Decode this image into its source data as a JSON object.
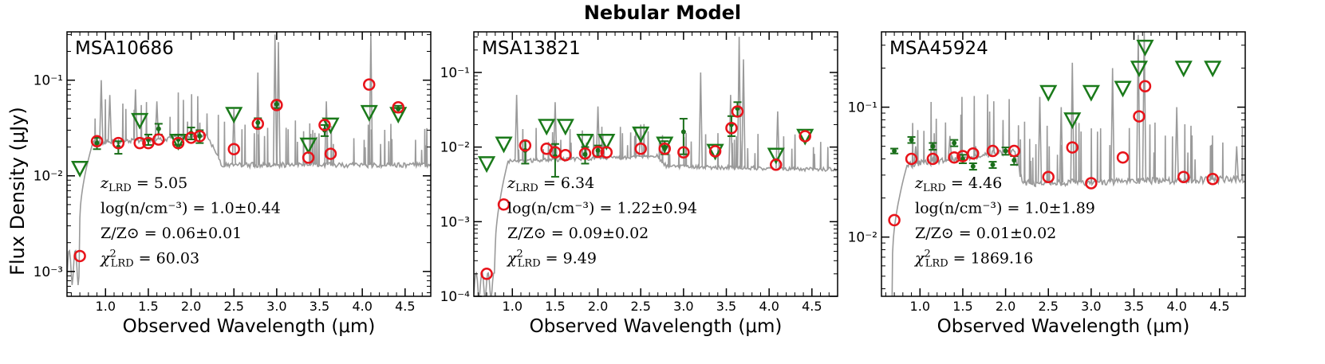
{
  "figure": {
    "title": "Nebular Model",
    "ylabel": "Flux Density (μJy)",
    "xlabel": "Observed Wavelength (μm)"
  },
  "colors": {
    "model": "#9a9a9a",
    "model_phot": "#e8131a",
    "detection": "#1a6f1a",
    "upper_limit": "#1a7a1a"
  },
  "chart_data": [
    {
      "type": "scatter",
      "name": "MSA10686",
      "xlim": [
        0.55,
        4.8
      ],
      "ylim": [
        0.00055,
        0.32
      ],
      "yscale": "log",
      "xticks": [
        "1.0",
        "1.5",
        "2.0",
        "2.5",
        "3.0",
        "3.5",
        "4.0",
        "4.5"
      ],
      "yticks": [
        {
          "value": 0.001,
          "label": "10⁻³"
        },
        {
          "value": 0.01,
          "label": "10⁻²"
        },
        {
          "value": 0.1,
          "label": "10⁻¹"
        }
      ],
      "annotations": [
        "z_LRD = 5.05",
        "log(n/cm⁻³) = 1.0±0.44",
        "Z/Z⊙ = 0.06±0.01",
        "χ²_LRD = 60.03"
      ],
      "model_sed": {
        "break": 0.7,
        "pre": 0.0012,
        "plateau": [
          [
            0.85,
            0.022
          ],
          [
            2.2,
            0.026
          ],
          [
            2.35,
            0.013
          ],
          [
            4.8,
            0.013
          ]
        ],
        "lines": [
          [
            0.95,
            0.1
          ],
          [
            1.05,
            0.07
          ],
          [
            1.35,
            0.08
          ],
          [
            1.6,
            0.06
          ],
          [
            2.5,
            0.05
          ],
          [
            2.78,
            0.12
          ],
          [
            2.98,
            0.3
          ],
          [
            3.02,
            0.25
          ],
          [
            3.58,
            0.06
          ],
          [
            4.1,
            0.3
          ]
        ]
      },
      "model_phot": [
        [
          0.7,
          0.00145
        ],
        [
          0.9,
          0.023
        ],
        [
          1.15,
          0.022
        ],
        [
          1.4,
          0.022
        ],
        [
          1.5,
          0.022
        ],
        [
          1.62,
          0.024
        ],
        [
          1.85,
          0.022
        ],
        [
          2.0,
          0.025
        ],
        [
          2.1,
          0.026
        ],
        [
          2.5,
          0.019
        ],
        [
          2.78,
          0.035
        ],
        [
          3.0,
          0.055
        ],
        [
          3.37,
          0.0155
        ],
        [
          3.56,
          0.034
        ],
        [
          3.63,
          0.017
        ],
        [
          4.08,
          0.09
        ],
        [
          4.42,
          0.052
        ]
      ],
      "detections": [
        [
          0.9,
          0.022,
          0.003
        ],
        [
          1.15,
          0.02,
          0.003
        ],
        [
          1.5,
          0.024,
          0.003
        ],
        [
          1.62,
          0.031,
          0.004
        ],
        [
          1.85,
          0.024,
          0.003
        ],
        [
          2.0,
          0.028,
          0.004
        ],
        [
          2.1,
          0.026,
          0.004
        ],
        [
          2.78,
          0.036,
          0.004
        ],
        [
          3.0,
          0.056,
          0.005
        ],
        [
          3.56,
          0.03,
          0.004
        ],
        [
          4.42,
          0.05,
          0.004
        ]
      ],
      "upper_limits": [
        [
          0.7,
          0.012
        ],
        [
          1.4,
          0.038
        ],
        [
          1.85,
          0.023
        ],
        [
          2.5,
          0.044
        ],
        [
          3.37,
          0.021
        ],
        [
          3.63,
          0.034
        ],
        [
          4.08,
          0.046
        ],
        [
          4.42,
          0.044
        ]
      ]
    },
    {
      "type": "scatter",
      "name": "MSA13821",
      "xlim": [
        0.55,
        4.8
      ],
      "ylim": [
        0.0001,
        0.35
      ],
      "yscale": "log",
      "xticks": [
        "1.0",
        "1.5",
        "2.0",
        "2.5",
        "3.0",
        "3.5",
        "4.0",
        "4.5"
      ],
      "yticks": [
        {
          "value": 0.0001,
          "label": "10⁻⁴"
        },
        {
          "value": 0.001,
          "label": "10⁻³"
        },
        {
          "value": 0.01,
          "label": "10⁻²"
        },
        {
          "value": 0.1,
          "label": "10⁻¹"
        }
      ],
      "annotations": [
        "z_LRD = 6.34",
        "log(n/cm⁻³) = 1.22±0.94",
        "Z/Z⊙ = 0.09±0.02",
        "χ²_LRD = 9.49"
      ],
      "model_sed": {
        "break": 0.8,
        "pre": 0.00015,
        "plateau": [
          [
            0.95,
            0.0065
          ],
          [
            2.7,
            0.0075
          ],
          [
            2.8,
            0.0055
          ],
          [
            4.8,
            0.005
          ]
        ],
        "lines": [
          [
            1.05,
            0.05
          ],
          [
            1.5,
            0.04
          ],
          [
            2.0,
            0.035
          ],
          [
            2.5,
            0.02
          ],
          [
            3.2,
            0.1
          ],
          [
            3.55,
            0.05
          ],
          [
            3.65,
            0.3
          ],
          [
            3.7,
            0.15
          ],
          [
            4.1,
            0.03
          ]
        ]
      },
      "model_phot": [
        [
          0.7,
          0.0002
        ],
        [
          0.9,
          0.0017
        ],
        [
          1.15,
          0.0105
        ],
        [
          1.4,
          0.0095
        ],
        [
          1.5,
          0.0085
        ],
        [
          1.62,
          0.0078
        ],
        [
          1.85,
          0.0082
        ],
        [
          2.0,
          0.0086
        ],
        [
          2.1,
          0.0085
        ],
        [
          2.5,
          0.0095
        ],
        [
          2.78,
          0.0095
        ],
        [
          3.0,
          0.0085
        ],
        [
          3.37,
          0.0088
        ],
        [
          3.56,
          0.018
        ],
        [
          3.63,
          0.03
        ],
        [
          4.08,
          0.0058
        ],
        [
          4.42,
          0.014
        ]
      ],
      "detections": [
        [
          1.15,
          0.009,
          0.003
        ],
        [
          1.5,
          0.0075,
          0.0035
        ],
        [
          1.85,
          0.008,
          0.002
        ],
        [
          2.0,
          0.009,
          0.0015
        ],
        [
          2.78,
          0.01,
          0.002
        ],
        [
          3.0,
          0.016,
          0.008
        ],
        [
          3.56,
          0.02,
          0.006
        ],
        [
          3.63,
          0.033,
          0.007
        ]
      ],
      "upper_limits": [
        [
          0.7,
          0.006
        ],
        [
          0.9,
          0.011
        ],
        [
          1.4,
          0.019
        ],
        [
          1.62,
          0.019
        ],
        [
          1.85,
          0.012
        ],
        [
          2.1,
          0.012
        ],
        [
          2.5,
          0.015
        ],
        [
          2.78,
          0.011
        ],
        [
          3.37,
          0.0088
        ],
        [
          4.08,
          0.0078
        ],
        [
          4.42,
          0.014
        ]
      ]
    },
    {
      "type": "scatter",
      "name": "MSA45924",
      "xlim": [
        0.55,
        4.8
      ],
      "ylim": [
        0.0035,
        0.38
      ],
      "yscale": "log",
      "xticks": [
        "1.0",
        "1.5",
        "2.0",
        "2.5",
        "3.0",
        "3.5",
        "4.0",
        "4.5"
      ],
      "yticks": [
        {
          "value": 0.01,
          "label": "10⁻²"
        },
        {
          "value": 0.1,
          "label": "10⁻¹"
        }
      ],
      "annotations": [
        "z_LRD = 4.46",
        "log(n/cm⁻³) = 1.0±1.89",
        "Z/Z⊙ = 0.01±0.02",
        "χ²_LRD = 1869.16"
      ],
      "model_sed": {
        "break": 0.68,
        "pre": 0.0025,
        "plateau": [
          [
            0.85,
            0.036
          ],
          [
            2.1,
            0.046
          ],
          [
            2.2,
            0.026
          ],
          [
            4.8,
            0.028
          ]
        ],
        "lines": [
          [
            0.95,
            0.05
          ],
          [
            1.35,
            0.06
          ],
          [
            1.65,
            0.05
          ],
          [
            2.4,
            0.12
          ],
          [
            2.65,
            0.1
          ],
          [
            2.78,
            0.22
          ],
          [
            3.25,
            0.2
          ],
          [
            3.55,
            0.36
          ],
          [
            3.62,
            0.38
          ],
          [
            4.0,
            0.1
          ],
          [
            4.7,
            0.05
          ]
        ]
      },
      "model_phot": [
        [
          0.7,
          0.0135
        ],
        [
          0.9,
          0.04
        ],
        [
          1.15,
          0.04
        ],
        [
          1.4,
          0.041
        ],
        [
          1.5,
          0.042
        ],
        [
          1.62,
          0.044
        ],
        [
          1.85,
          0.046
        ],
        [
          2.1,
          0.046
        ],
        [
          2.5,
          0.029
        ],
        [
          2.78,
          0.049
        ],
        [
          3.0,
          0.026
        ],
        [
          3.37,
          0.041
        ],
        [
          3.56,
          0.085
        ],
        [
          3.63,
          0.145
        ],
        [
          4.08,
          0.029
        ],
        [
          4.42,
          0.028
        ]
      ],
      "detections": [
        [
          0.7,
          0.046,
          0.002
        ],
        [
          0.9,
          0.056,
          0.003
        ],
        [
          1.15,
          0.05,
          0.003
        ],
        [
          1.4,
          0.053,
          0.003
        ],
        [
          1.5,
          0.04,
          0.003
        ],
        [
          1.62,
          0.035,
          0.002
        ],
        [
          1.85,
          0.036,
          0.002
        ],
        [
          2.0,
          0.046,
          0.003
        ],
        [
          2.1,
          0.039,
          0.003
        ]
      ],
      "upper_limits": [
        [
          2.5,
          0.13
        ],
        [
          2.78,
          0.08
        ],
        [
          3.0,
          0.13
        ],
        [
          3.37,
          0.14
        ],
        [
          3.56,
          0.2
        ],
        [
          3.63,
          0.29
        ],
        [
          4.08,
          0.2
        ],
        [
          4.42,
          0.2
        ]
      ]
    }
  ]
}
